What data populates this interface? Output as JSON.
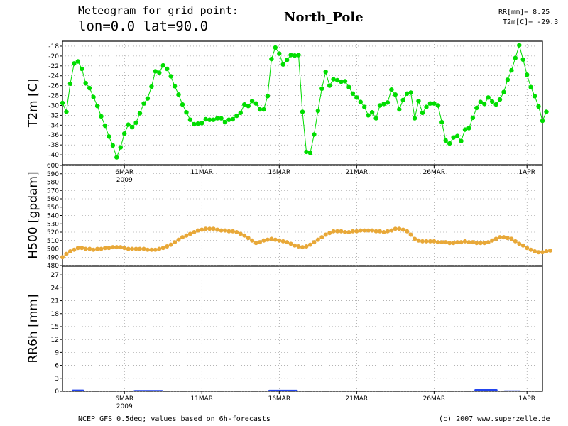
{
  "header": {
    "line1": "Meteogram for grid point:",
    "line2": "lon=0.0 lat=90.0",
    "station": "North_Pole",
    "rr_summary": "RR[mm]= 8.25",
    "t2m_summary": "T2m[C]= -29.3"
  },
  "footer": {
    "source": "NCEP GFS 0.5deg; values based on 6h-forecasts",
    "copyright": "(c) 2007 www.superzelle.de"
  },
  "colors": {
    "t2m": "#00dd00",
    "h500": "#e8a838",
    "rr": "#2244ee",
    "grid": "#888888",
    "frame": "#000000"
  },
  "chart_data": [
    {
      "type": "line",
      "ylabel": "T2m [C]",
      "ylim": [
        -42,
        -17
      ],
      "yticks": [
        -40,
        -38,
        -36,
        -34,
        -32,
        -30,
        -28,
        -26,
        -24,
        -22,
        -20,
        -18
      ],
      "xlim_days": [
        0,
        31
      ],
      "xticks": [
        {
          "day": 4,
          "label": "6MAR",
          "label2": "2009"
        },
        {
          "day": 9,
          "label": "11MAR"
        },
        {
          "day": 14,
          "label": "16MAR"
        },
        {
          "day": 19,
          "label": "21MAR"
        },
        {
          "day": 24,
          "label": "26MAR"
        },
        {
          "day": 30,
          "label": "1APR"
        }
      ],
      "x_start": "2009-03-02",
      "step_hours": 6,
      "series": [
        {
          "values": [
            -29.5,
            -31.3,
            -25.6,
            -21.5,
            -21.1,
            -22.6,
            -25.5,
            -26.5,
            -28.3,
            -30.1,
            -32.2,
            -34.1,
            -36.3,
            -38.1,
            -40.5,
            -38.5,
            -35.7,
            -33.9,
            -34.4,
            -33.5,
            -31.6,
            -29.6,
            -28.6,
            -26.2,
            -23.1,
            -23.4,
            -21.9,
            -22.6,
            -24.1,
            -26.1,
            -27.8,
            -29.8,
            -31.4,
            -32.9,
            -33.8,
            -33.7,
            -33.6,
            -32.8,
            -32.9,
            -32.9,
            -32.6,
            -32.6,
            -33.4,
            -32.9,
            -32.8,
            -32.1,
            -31.5,
            -29.8,
            -30.1,
            -29.1,
            -29.6,
            -30.8,
            -30.8,
            -28.1,
            -20.6,
            -18.3,
            -19.5,
            -21.7,
            -20.8,
            -19.8,
            -19.9,
            -19.8,
            -31.3,
            -39.4,
            -39.6,
            -35.9,
            -31.1,
            -26.6,
            -23.2,
            -26.0,
            -24.7,
            -24.9,
            -25.2,
            -25.1,
            -26.3,
            -27.6,
            -28.4,
            -29.3,
            -30.3,
            -32.0,
            -31.4,
            -32.6,
            -30.0,
            -29.7,
            -29.4,
            -26.8,
            -27.8,
            -30.8,
            -28.9,
            -27.6,
            -27.4,
            -32.6,
            -29.1,
            -31.5,
            -30.3,
            -29.6,
            -29.6,
            -30.0,
            -33.4,
            -37.1,
            -37.7,
            -36.5,
            -36.2,
            -37.2,
            -34.9,
            -34.6,
            -32.5,
            -30.5,
            -29.3,
            -29.7,
            -28.4,
            -29.2,
            -29.8,
            -28.8,
            -27.3,
            -24.8,
            -22.9,
            -20.4,
            -17.8,
            -20.7,
            -23.8,
            -26.3,
            -28.1,
            -30.2,
            -33.1,
            -31.3
          ]
        }
      ]
    },
    {
      "type": "line",
      "ylabel": "H500 [gpdam]",
      "ylim": [
        480,
        600
      ],
      "yticks": [
        480,
        490,
        500,
        510,
        520,
        530,
        540,
        550,
        560,
        570,
        580,
        590,
        600
      ],
      "xlim_days": [
        0,
        31
      ],
      "step_hours": 6,
      "series": [
        {
          "values": [
            490,
            494,
            497,
            499,
            501,
            501,
            500,
            500,
            499,
            500,
            500,
            501,
            501,
            502,
            502,
            502,
            501,
            500,
            500,
            500,
            500,
            500,
            499,
            499,
            499,
            500,
            501,
            503,
            505,
            508,
            511,
            514,
            516,
            518,
            520,
            522,
            523,
            524,
            524,
            524,
            523,
            522,
            522,
            521,
            521,
            520,
            518,
            516,
            513,
            510,
            507,
            508,
            510,
            511,
            512,
            511,
            510,
            509,
            508,
            506,
            504,
            503,
            502,
            503,
            505,
            508,
            511,
            514,
            517,
            519,
            521,
            521,
            521,
            520,
            520,
            521,
            521,
            522,
            522,
            522,
            522,
            521,
            521,
            520,
            521,
            522,
            524,
            524,
            523,
            521,
            517,
            512,
            510,
            509,
            509,
            509,
            509,
            508,
            508,
            508,
            507,
            507,
            508,
            508,
            509,
            508,
            508,
            507,
            507,
            507,
            508,
            510,
            512,
            514,
            514,
            513,
            512,
            509,
            506,
            504,
            501,
            499,
            497,
            496,
            496,
            497,
            498
          ]
        }
      ]
    },
    {
      "type": "bar",
      "ylabel": "RR6h [mm]",
      "ylim": [
        0,
        29
      ],
      "yticks": [
        0,
        3,
        6,
        9,
        12,
        15,
        18,
        21,
        24,
        27
      ],
      "xlim_days": [
        0,
        31
      ],
      "step_hours": 6,
      "series": [
        {
          "spans": [
            {
              "start_day": 0.6,
              "end_day": 1.4,
              "value": 0.4
            },
            {
              "start_day": 4.6,
              "end_day": 6.5,
              "value": 0.3
            },
            {
              "start_day": 13.3,
              "end_day": 15.2,
              "value": 0.35
            },
            {
              "start_day": 26.6,
              "end_day": 28.1,
              "value": 0.5
            },
            {
              "start_day": 28.5,
              "end_day": 29.6,
              "value": 0.2
            }
          ]
        }
      ]
    }
  ]
}
